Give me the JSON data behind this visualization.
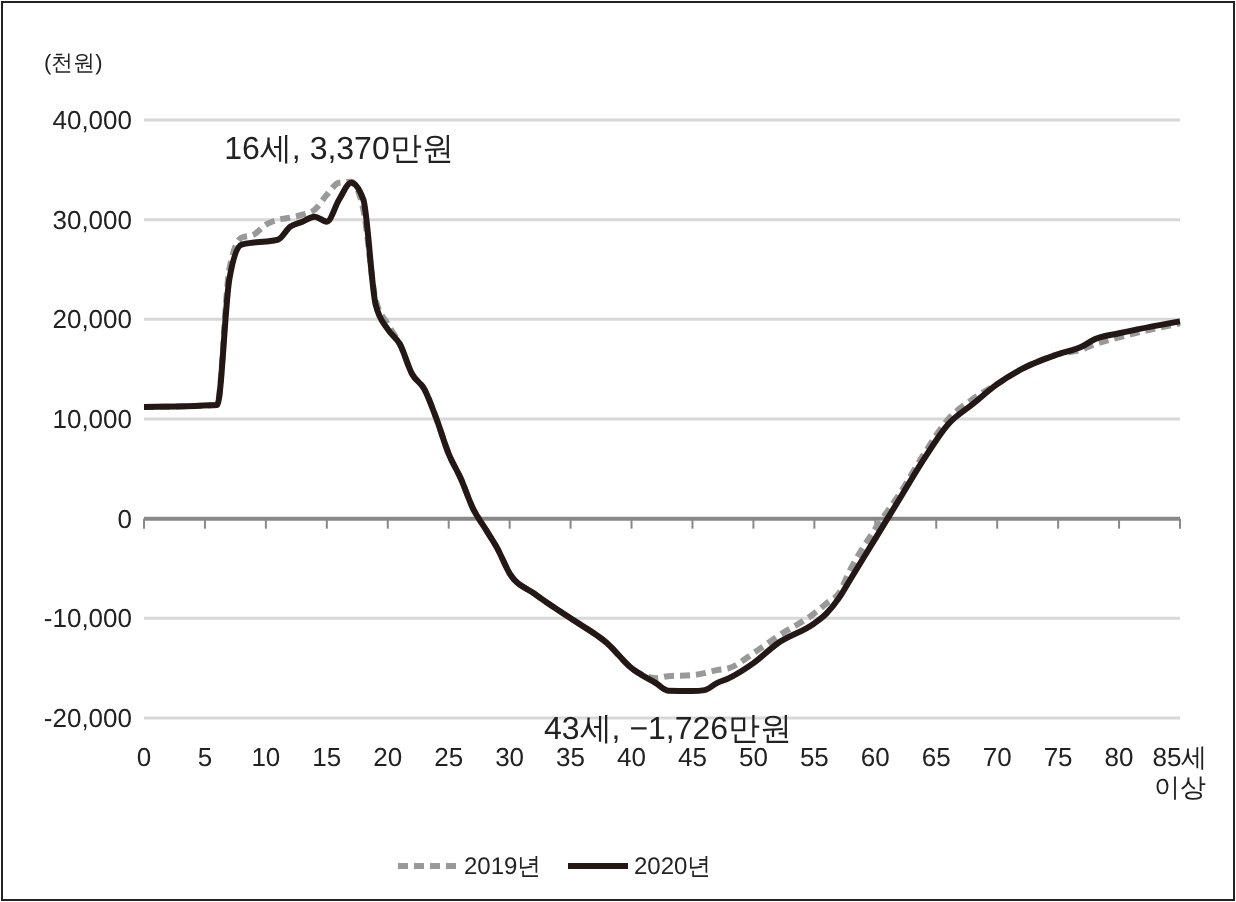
{
  "chart_data": {
    "type": "line",
    "ylabel": "(천원)",
    "x": [
      0,
      6,
      7,
      8,
      9,
      10,
      11,
      12,
      13,
      14,
      15,
      16,
      17,
      18,
      19,
      20,
      21,
      22,
      23,
      24,
      25,
      26,
      27,
      28,
      29,
      30,
      32,
      35,
      38,
      40,
      42,
      43,
      45,
      46,
      47,
      48,
      50,
      52,
      55,
      56,
      57,
      58,
      60,
      62,
      64,
      66,
      68,
      70,
      72,
      75,
      77,
      78,
      80,
      85
    ],
    "series": [
      {
        "name": "2019년",
        "color": "#999999",
        "line_style": "dashed",
        "values": [
          11200,
          11400,
          25000,
          28200,
          28500,
          29500,
          30000,
          30200,
          30500,
          31000,
          32500,
          33700,
          33800,
          31000,
          22000,
          19500,
          17500,
          14500,
          13000,
          10000,
          6500,
          4000,
          1000,
          -1000,
          -3000,
          -5500,
          -7500,
          -10000,
          -12500,
          -15000,
          -16000,
          -15800,
          -15700,
          -15500,
          -15200,
          -15000,
          -13500,
          -11800,
          -9500,
          -8500,
          -7500,
          -5000,
          -1000,
          2500,
          6500,
          10000,
          12000,
          13500,
          15000,
          16500,
          17000,
          17500,
          18200,
          19600
        ]
      },
      {
        "name": "2020년",
        "color": "#231815",
        "line_style": "solid",
        "values": [
          11200,
          11400,
          24000,
          27500,
          27700,
          27800,
          28000,
          29300,
          29800,
          30300,
          29800,
          32000,
          33700,
          32000,
          21500,
          19000,
          17500,
          14500,
          13000,
          10000,
          6500,
          4000,
          1000,
          -1000,
          -3000,
          -5500,
          -7500,
          -10000,
          -12500,
          -15000,
          -16500,
          -17260,
          -17300,
          -17200,
          -16500,
          -16000,
          -14500,
          -12500,
          -10500,
          -9500,
          -8000,
          -6000,
          -2000,
          2000,
          6000,
          9500,
          11500,
          13500,
          15000,
          16500,
          17300,
          18000,
          18600,
          19800
        ]
      }
    ],
    "xlim": [
      0,
      85
    ],
    "xticks": [
      0,
      5,
      10,
      15,
      20,
      25,
      30,
      35,
      40,
      45,
      50,
      55,
      60,
      65,
      70,
      75,
      80,
      {
        "value": 85,
        "label": "85세\n이상"
      }
    ],
    "ylim": [
      -20000,
      40000
    ],
    "yticks": [
      {
        "value": -20000,
        "label": "-20,000"
      },
      {
        "value": -10000,
        "label": "-10,000"
      },
      0,
      {
        "value": 10000,
        "label": "10,000"
      },
      {
        "value": 20000,
        "label": "20,000"
      },
      {
        "value": 30000,
        "label": "30,000"
      },
      {
        "value": 40000,
        "label": "40,000"
      }
    ],
    "grid": "y",
    "legend": "bottom",
    "marker": "none",
    "annotations": [
      {
        "text": "16세, 3,370만원",
        "x": 16,
        "y": 33700
      },
      {
        "text": "43세, −1,726만원",
        "x": 43,
        "y": -17260
      }
    ]
  }
}
